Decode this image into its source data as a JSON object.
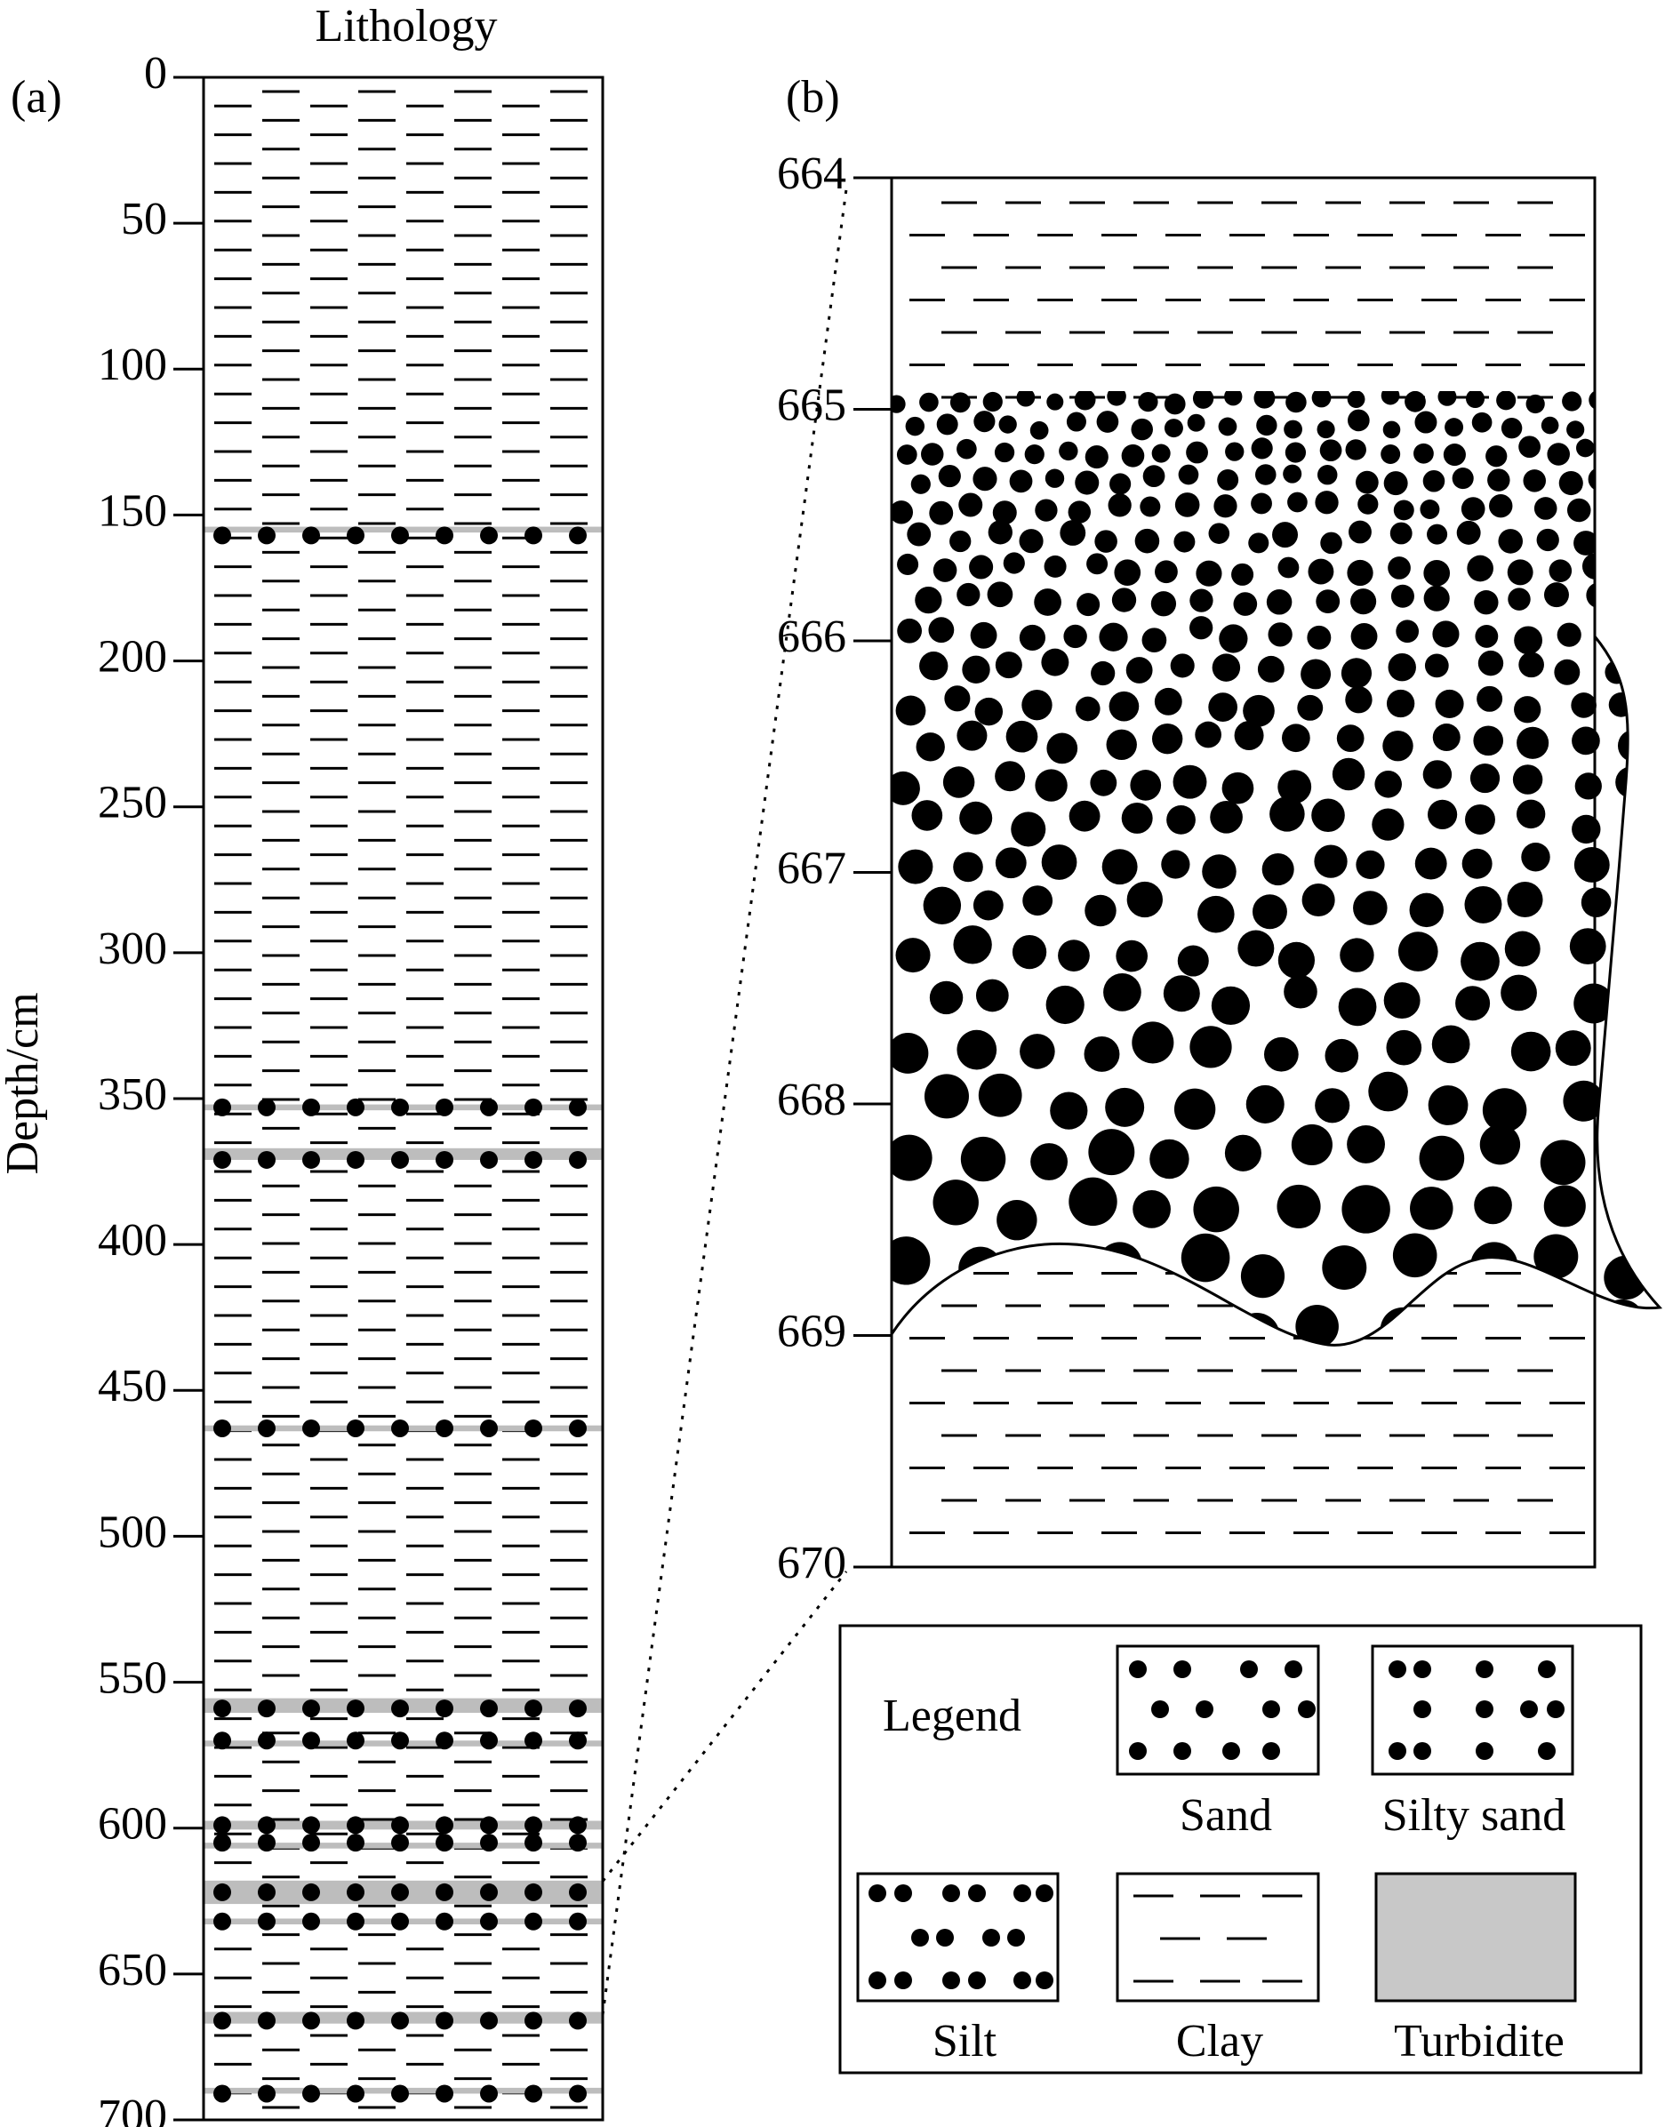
{
  "panel_a": {
    "label": "(a)",
    "title": "Lithology",
    "y_label": "Depth/cm",
    "ylim": [
      0,
      700
    ],
    "yticks": [
      0,
      50,
      100,
      150,
      200,
      250,
      300,
      350,
      400,
      450,
      500,
      550,
      600,
      650,
      700
    ],
    "turbidite_bands": [
      {
        "depth": 155,
        "thickness": 2
      },
      {
        "depth": 353,
        "thickness": 2
      },
      {
        "depth": 369,
        "thickness": 4
      },
      {
        "depth": 463,
        "thickness": 2
      },
      {
        "depth": 558,
        "thickness": 5
      },
      {
        "depth": 571,
        "thickness": 2
      },
      {
        "depth": 599,
        "thickness": 3
      },
      {
        "depth": 606,
        "thickness": 2
      },
      {
        "depth": 622,
        "thickness": 8
      },
      {
        "depth": 632,
        "thickness": 2
      },
      {
        "depth": 665,
        "thickness": 4
      },
      {
        "depth": 690,
        "thickness": 2
      }
    ],
    "dot_rows": [
      157,
      353,
      371,
      463,
      559,
      570,
      599,
      605,
      622,
      632,
      666,
      691
    ]
  },
  "panel_b": {
    "label": "(b)",
    "ylim": [
      664,
      670
    ],
    "yticks": [
      664,
      665,
      666,
      667,
      668,
      669,
      670
    ]
  },
  "legend": {
    "title": "Legend",
    "items": [
      "Sand",
      "Silty sand",
      "Silt",
      "Clay",
      "Turbidite"
    ]
  }
}
